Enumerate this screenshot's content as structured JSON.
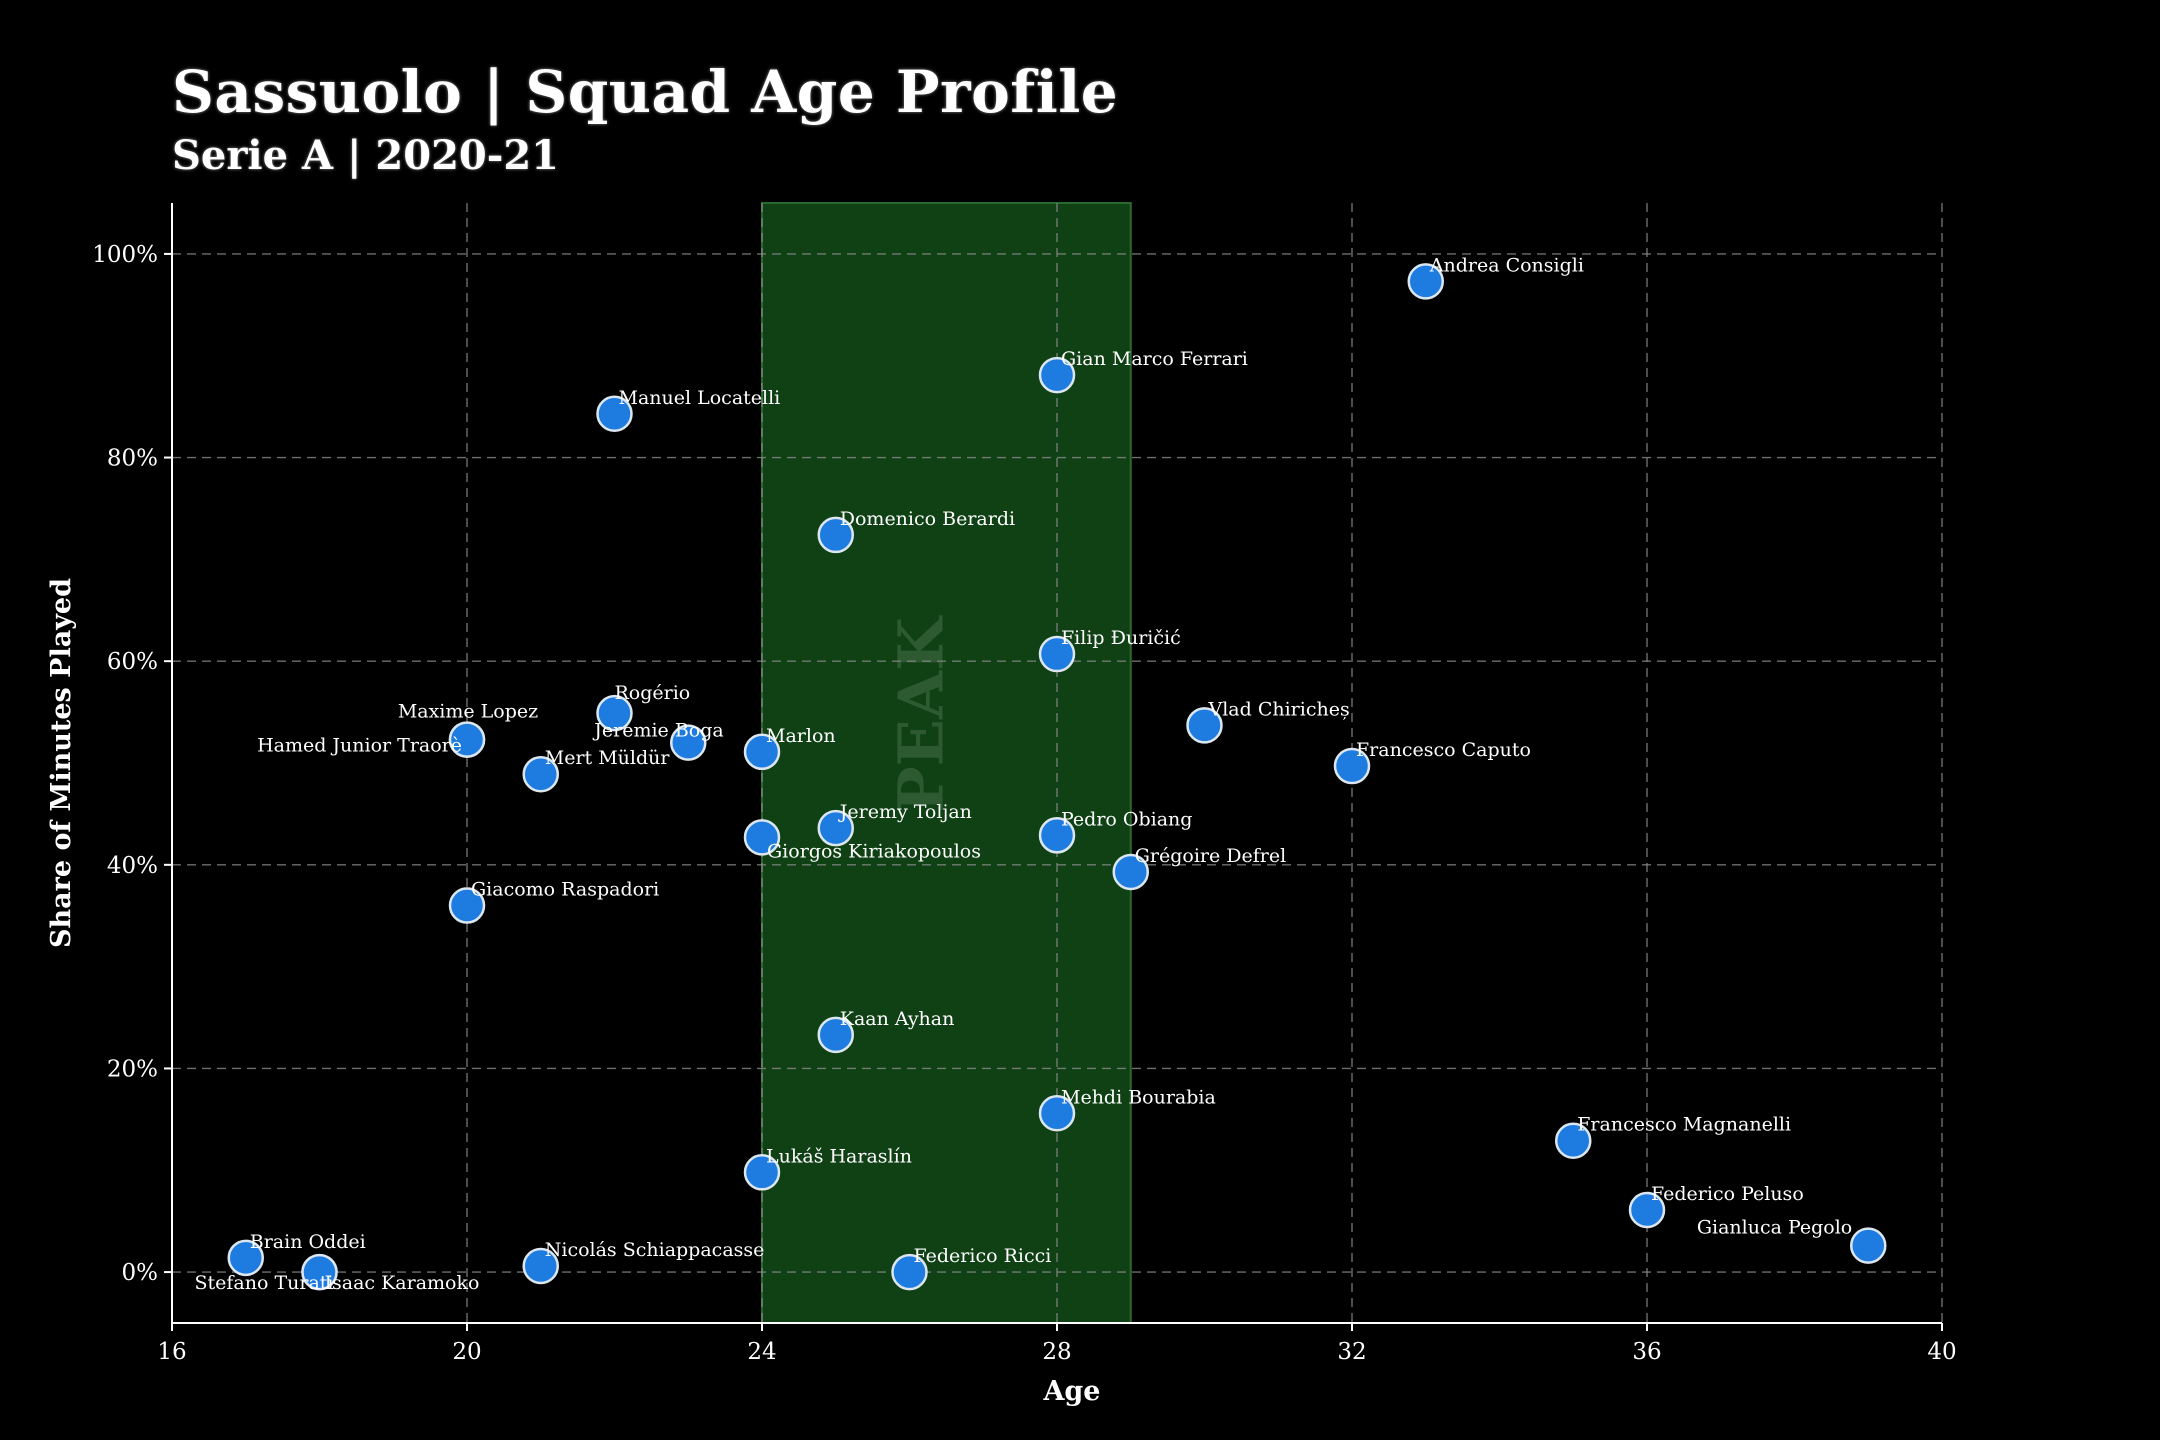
{
  "header": {
    "title": "Sassuolo | Squad Age Profile",
    "subtitle": "Serie A | 2020-21"
  },
  "chart_data": {
    "type": "scatter",
    "title": "Sassuolo | Squad Age Profile",
    "subtitle": "Serie A | 2020-21",
    "xlabel": "Age",
    "ylabel": "Share of Minutes Played",
    "xlim": [
      16,
      40
    ],
    "ylim": [
      -5,
      105
    ],
    "x_ticks": [
      16,
      20,
      24,
      28,
      32,
      36,
      40
    ],
    "y_ticks": [
      0,
      20,
      40,
      60,
      80,
      100
    ],
    "y_tick_labels": [
      "0%",
      "20%",
      "40%",
      "60%",
      "80%",
      "100%"
    ],
    "grid": true,
    "peak_band": {
      "label": "PEAK",
      "x_range": [
        24,
        29
      ],
      "color": "#104516"
    },
    "point_color": "#1e7be0",
    "points": [
      {
        "name": "Andrea Consigli",
        "x": 33,
        "y": 97.3
      },
      {
        "name": "Gian Marco Ferrari",
        "x": 28,
        "y": 88.1
      },
      {
        "name": "Manuel Locatelli",
        "x": 22,
        "y": 84.3
      },
      {
        "name": "Domenico Berardi",
        "x": 25,
        "y": 72.4
      },
      {
        "name": "Filip Đuričić",
        "x": 28,
        "y": 60.7
      },
      {
        "name": "Vlad Chiricheș",
        "x": 30,
        "y": 53.7
      },
      {
        "name": "Maxime Lopez",
        "x": 20,
        "y": 52.3
      },
      {
        "name": "Hamed Junior Traorè",
        "x": 20,
        "y": 52.3
      },
      {
        "name": "Rogério",
        "x": 22,
        "y": 54.9
      },
      {
        "name": "Jeremie Boga",
        "x": 23,
        "y": 52.0
      },
      {
        "name": "Marlon",
        "x": 24,
        "y": 51.1
      },
      {
        "name": "Francesco Caputo",
        "x": 32,
        "y": 49.7
      },
      {
        "name": "Mert Müldür",
        "x": 21,
        "y": 48.9
      },
      {
        "name": "Jeremy Toljan",
        "x": 25,
        "y": 43.6
      },
      {
        "name": "Giorgos Kiriakopoulos",
        "x": 24,
        "y": 42.7
      },
      {
        "name": "Pedro Obiang",
        "x": 28,
        "y": 42.9
      },
      {
        "name": "Grégoire Defrel",
        "x": 29,
        "y": 39.3
      },
      {
        "name": "Giacomo Raspadori",
        "x": 20,
        "y": 36.0
      },
      {
        "name": "Kaan Ayhan",
        "x": 25,
        "y": 23.3
      },
      {
        "name": "Mehdi Bourabia",
        "x": 28,
        "y": 15.6
      },
      {
        "name": "Francesco Magnanelli",
        "x": 35,
        "y": 12.9
      },
      {
        "name": "Lukáš Haraslín",
        "x": 24,
        "y": 9.8
      },
      {
        "name": "Federico Peluso",
        "x": 36,
        "y": 6.1
      },
      {
        "name": "Gianluca Pegolo",
        "x": 39,
        "y": 2.6
      },
      {
        "name": "Brain Oddei",
        "x": 17,
        "y": 1.4
      },
      {
        "name": "Nicolás Schiappacasse",
        "x": 21,
        "y": 0.6
      },
      {
        "name": "Stefano Turati",
        "x": 18,
        "y": 0.0
      },
      {
        "name": "Isaac Karamoko",
        "x": 18,
        "y": 0.0
      },
      {
        "name": "Federico Ricci",
        "x": 26,
        "y": 0.0
      }
    ]
  }
}
